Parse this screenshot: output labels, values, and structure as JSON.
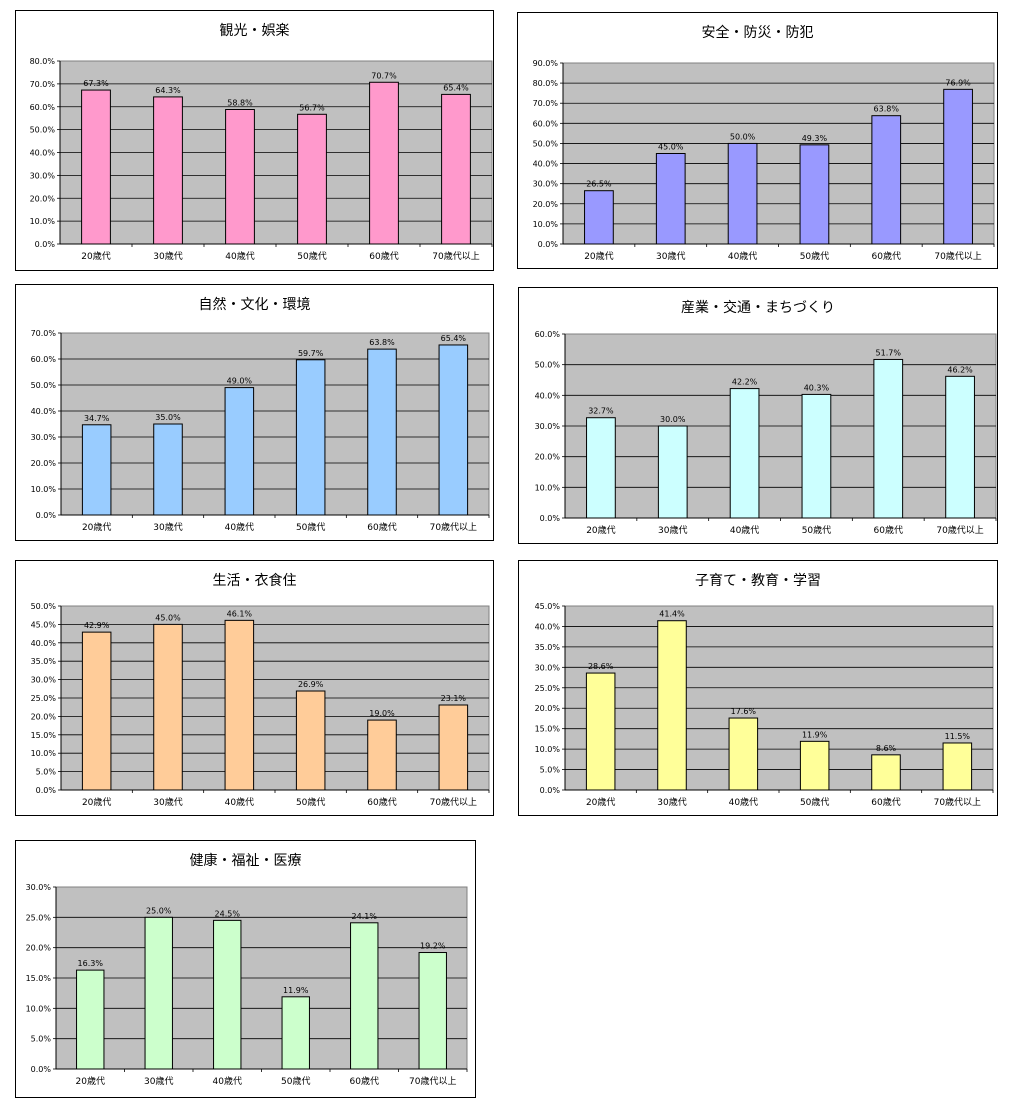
{
  "chart_data": [
    {
      "type": "bar",
      "title": "観光・娯楽",
      "categories": [
        "20歳代",
        "30歳代",
        "40歳代",
        "50歳代",
        "60歳代",
        "70歳代以上"
      ],
      "values": [
        67.3,
        64.3,
        58.8,
        56.7,
        70.7,
        65.4
      ],
      "data_labels": [
        "67.3%",
        "64.3%",
        "58.8%",
        "56.7%",
        "70.7%",
        "65.4%"
      ],
      "ylim": [
        0,
        80
      ],
      "yticks": [
        "0.0%",
        "10.0%",
        "20.0%",
        "30.0%",
        "40.0%",
        "50.0%",
        "60.0%",
        "70.0%",
        "80.0%"
      ],
      "bar_color": "#ff99cc",
      "grid": true
    },
    {
      "type": "bar",
      "title": "安全・防災・防犯",
      "categories": [
        "20歳代",
        "30歳代",
        "40歳代",
        "50歳代",
        "60歳代",
        "70歳代以上"
      ],
      "values": [
        26.5,
        45.0,
        50.0,
        49.3,
        63.8,
        76.9
      ],
      "data_labels": [
        "26.5%",
        "45.0%",
        "50.0%",
        "49.3%",
        "63.8%",
        "76.9%"
      ],
      "ylim": [
        0,
        90
      ],
      "yticks": [
        "0.0%",
        "10.0%",
        "20.0%",
        "30.0%",
        "40.0%",
        "50.0%",
        "60.0%",
        "70.0%",
        "80.0%",
        "90.0%"
      ],
      "bar_color": "#9999ff",
      "grid": true
    },
    {
      "type": "bar",
      "title": "自然・文化・環境",
      "categories": [
        "20歳代",
        "30歳代",
        "40歳代",
        "50歳代",
        "60歳代",
        "70歳代以上"
      ],
      "values": [
        34.7,
        35.0,
        49.0,
        59.7,
        63.8,
        65.4
      ],
      "data_labels": [
        "34.7%",
        "35.0%",
        "49.0%",
        "59.7%",
        "63.8%",
        "65.4%"
      ],
      "ylim": [
        0,
        70
      ],
      "yticks": [
        "0.0%",
        "10.0%",
        "20.0%",
        "30.0%",
        "40.0%",
        "50.0%",
        "60.0%",
        "70.0%"
      ],
      "bar_color": "#99ccff",
      "grid": true
    },
    {
      "type": "bar",
      "title": "産業・交通・まちづくり",
      "categories": [
        "20歳代",
        "30歳代",
        "40歳代",
        "50歳代",
        "60歳代",
        "70歳代以上"
      ],
      "values": [
        32.7,
        30.0,
        42.2,
        40.3,
        51.7,
        46.2
      ],
      "data_labels": [
        "32.7%",
        "30.0%",
        "42.2%",
        "40.3%",
        "51.7%",
        "46.2%"
      ],
      "ylim": [
        0,
        60
      ],
      "yticks": [
        "0.0%",
        "10.0%",
        "20.0%",
        "30.0%",
        "40.0%",
        "50.0%",
        "60.0%"
      ],
      "bar_color": "#ccffff",
      "grid": true
    },
    {
      "type": "bar",
      "title": "生活・衣食住",
      "categories": [
        "20歳代",
        "30歳代",
        "40歳代",
        "50歳代",
        "60歳代",
        "70歳代以上"
      ],
      "values": [
        42.9,
        45.0,
        46.1,
        26.9,
        19.0,
        23.1
      ],
      "data_labels": [
        "42.9%",
        "45.0%",
        "46.1%",
        "26.9%",
        "19.0%",
        "23.1%"
      ],
      "ylim": [
        0,
        50
      ],
      "yticks": [
        "0.0%",
        "5.0%",
        "10.0%",
        "15.0%",
        "20.0%",
        "25.0%",
        "30.0%",
        "35.0%",
        "40.0%",
        "45.0%",
        "50.0%"
      ],
      "bar_color": "#ffcc99",
      "grid": true
    },
    {
      "type": "bar",
      "title": "子育て・教育・学習",
      "categories": [
        "20歳代",
        "30歳代",
        "40歳代",
        "50歳代",
        "60歳代",
        "70歳代以上"
      ],
      "values": [
        28.6,
        41.4,
        17.6,
        11.9,
        8.6,
        11.5
      ],
      "data_labels": [
        "28.6%",
        "41.4%",
        "17.6%",
        "11.9%",
        "8.6%",
        "11.5%"
      ],
      "ylim": [
        0,
        45
      ],
      "yticks": [
        "0.0%",
        "5.0%",
        "10.0%",
        "15.0%",
        "20.0%",
        "25.0%",
        "30.0%",
        "35.0%",
        "40.0%",
        "45.0%"
      ],
      "bar_color": "#ffff99",
      "grid": true
    },
    {
      "type": "bar",
      "title": "健康・福祉・医療",
      "categories": [
        "20歳代",
        "30歳代",
        "40歳代",
        "50歳代",
        "60歳代",
        "70歳代以上"
      ],
      "values": [
        16.3,
        25.0,
        24.5,
        11.9,
        24.1,
        19.2
      ],
      "data_labels": [
        "16.3%",
        "25.0%",
        "24.5%",
        "11.9%",
        "24.1%",
        "19.2%"
      ],
      "ylim": [
        0,
        30
      ],
      "yticks": [
        "0.0%",
        "5.0%",
        "10.0%",
        "15.0%",
        "20.0%",
        "25.0%",
        "30.0%"
      ],
      "bar_color": "#ccffcc",
      "grid": true
    }
  ]
}
